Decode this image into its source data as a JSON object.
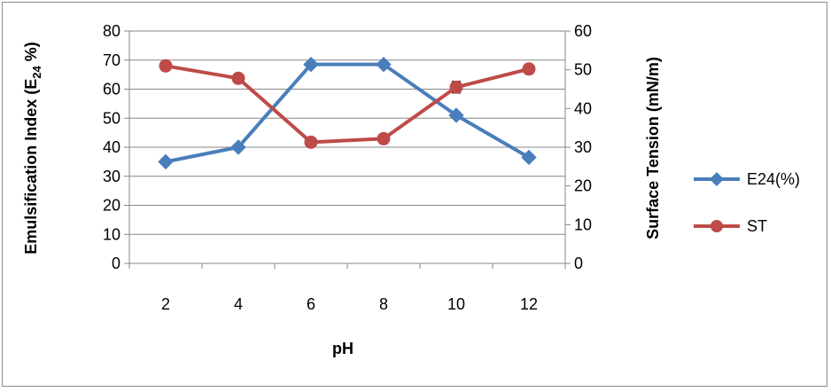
{
  "chart_data": {
    "type": "line",
    "xlabel": "pH",
    "categories": [
      "2",
      "4",
      "6",
      "8",
      "10",
      "12"
    ],
    "y_left": {
      "label_main": "Emulsification  Index (E",
      "label_sub": "24",
      "label_tail": " %)",
      "ylim": [
        0,
        80
      ],
      "ticks": [
        0,
        10,
        20,
        30,
        40,
        50,
        60,
        70,
        80
      ]
    },
    "y_right": {
      "label": "Surface Tension  (mN/m)",
      "ylim": [
        0,
        60
      ],
      "ticks": [
        0,
        10,
        20,
        30,
        40,
        50,
        60
      ]
    },
    "series": [
      {
        "name": "E24(%)",
        "axis": "left",
        "marker": "diamond",
        "color": "#4a7ebb",
        "values": [
          35,
          40,
          68.5,
          68.5,
          51,
          36.5
        ],
        "errors": [
          0.8,
          1.0,
          0.8,
          0.8,
          1.0,
          0.8
        ]
      },
      {
        "name": "ST",
        "axis": "right",
        "marker": "circle",
        "color": "#be4b48",
        "values": [
          51,
          47.8,
          31.3,
          32.2,
          45.5,
          50.2
        ],
        "errors": [
          0.6,
          0.6,
          0.6,
          1.2,
          1.5,
          1.2
        ]
      }
    ],
    "legend_position": "right",
    "grid": "horizontal"
  }
}
